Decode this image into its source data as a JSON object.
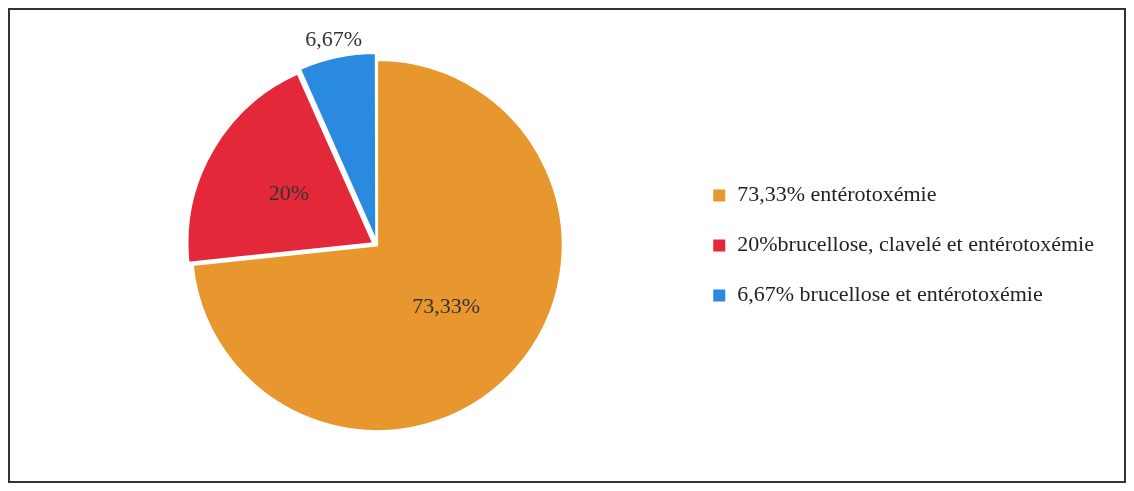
{
  "chart_data": {
    "type": "pie",
    "categories": [
      "73,33% entérotoxémie",
      "20%brucellose, clavelé et entérotoxémie",
      "6,67% brucellose et entérotoxémie"
    ],
    "values": [
      73.33,
      20,
      6.67
    ],
    "colors": [
      "#e8962e",
      "#e3283a",
      "#2a8ae0"
    ],
    "value_labels": [
      "73,33%",
      "20%",
      "6,67%"
    ],
    "legend": "right"
  }
}
